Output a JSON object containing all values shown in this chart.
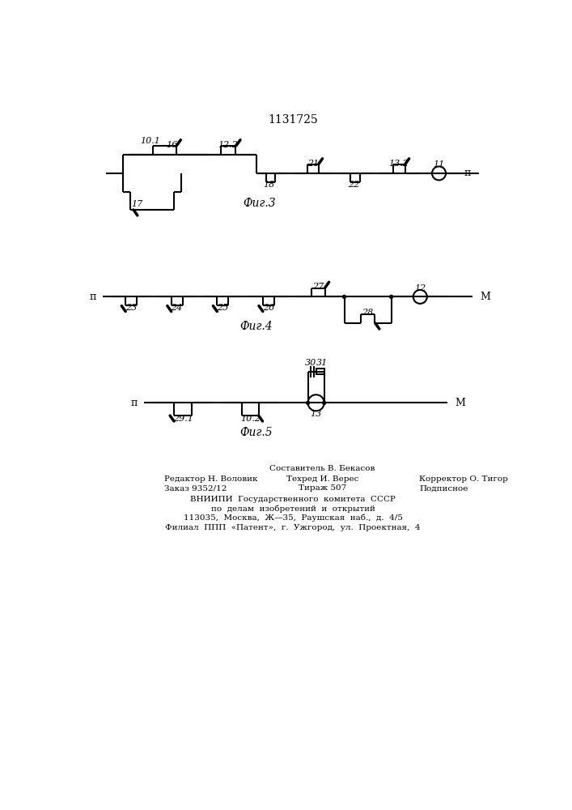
{
  "title": "1131725",
  "background_color": "#ffffff",
  "line_color": "#000000",
  "line_width": 1.5,
  "fig3_label": "Фиг.3",
  "fig4_label": "Фиг.4",
  "fig5_label": "Фиг.5",
  "footer_lines": [
    [
      "",
      "Составитель В. Бекасов",
      ""
    ],
    [
      "Редактор Н. Воловик",
      "Техред И. Верес",
      "Корректор О. Тигор"
    ],
    [
      "Заказ 9352/12",
      "Тираж 507",
      "Подписное"
    ],
    [
      "",
      "ВНИИПИ  Государственного  комитета  СССР",
      ""
    ],
    [
      "",
      "по  делам  изобретений  и  открытий",
      ""
    ],
    [
      "",
      "113035,  Москва,  Ж—35,  Раушская  наб.,  д.  4/5",
      ""
    ],
    [
      "",
      "Филиал  ППП  «Патент»,  г.  Ужгород,  ул.  Проектная,  4",
      ""
    ]
  ]
}
